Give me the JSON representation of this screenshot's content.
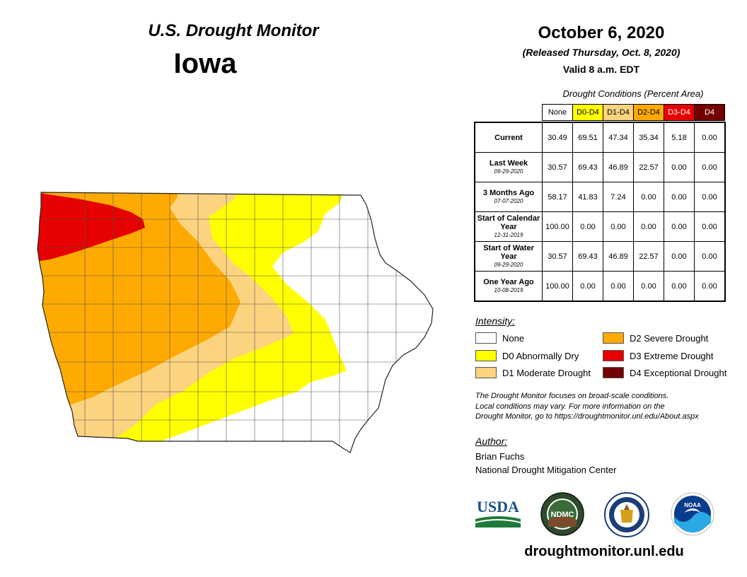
{
  "header": {
    "title": "U.S. Drought Monitor",
    "state": "Iowa",
    "date": "October 6, 2020",
    "released": "(Released Thursday, Oct. 8, 2020)",
    "valid": "Valid 8 a.m. EDT"
  },
  "conditions": {
    "caption": "Drought Conditions (Percent Area)",
    "columns": [
      {
        "label": "None",
        "color": "#ffffff",
        "text_color": "#000000"
      },
      {
        "label": "D0-D4",
        "color": "#ffff00",
        "text_color": "#000000"
      },
      {
        "label": "D1-D4",
        "color": "#fcd37f",
        "text_color": "#000000"
      },
      {
        "label": "D2-D4",
        "color": "#ffaa00",
        "text_color": "#000000"
      },
      {
        "label": "D3-D4",
        "color": "#e60000",
        "text_color": "#ffffff"
      },
      {
        "label": "D4",
        "color": "#730000",
        "text_color": "#ffffff"
      }
    ],
    "rows": [
      {
        "label": "Current",
        "date": "",
        "values": [
          "30.49",
          "69.51",
          "47.34",
          "35.34",
          "5.18",
          "0.00"
        ]
      },
      {
        "label": "Last Week",
        "date": "09-29-2020",
        "values": [
          "30.57",
          "69.43",
          "46.89",
          "22.57",
          "0.00",
          "0.00"
        ]
      },
      {
        "label": "3 Months Ago",
        "date": "07-07-2020",
        "values": [
          "58.17",
          "41.83",
          "7.24",
          "0.00",
          "0.00",
          "0.00"
        ]
      },
      {
        "label": "Start of Calendar Year",
        "date": "12-31-2019",
        "values": [
          "100.00",
          "0.00",
          "0.00",
          "0.00",
          "0.00",
          "0.00"
        ]
      },
      {
        "label": "Start of Water Year",
        "date": "09-29-2020",
        "values": [
          "30.57",
          "69.43",
          "46.89",
          "22.57",
          "0.00",
          "0.00"
        ]
      },
      {
        "label": "One Year Ago",
        "date": "10-08-2019",
        "values": [
          "100.00",
          "0.00",
          "0.00",
          "0.00",
          "0.00",
          "0.00"
        ]
      }
    ]
  },
  "legend": {
    "title": "Intensity:",
    "items": [
      {
        "label": "None",
        "color": "#ffffff"
      },
      {
        "label": "D0 Abnormally Dry",
        "color": "#ffff00"
      },
      {
        "label": "D1 Moderate Drought",
        "color": "#fcd37f"
      },
      {
        "label": "D2 Severe Drought",
        "color": "#ffaa00"
      },
      {
        "label": "D3 Extreme Drought",
        "color": "#e60000"
      },
      {
        "label": "D4 Exceptional Drought",
        "color": "#730000"
      }
    ]
  },
  "note": [
    "The Drought Monitor focuses on broad-scale conditions.",
    "Local conditions may vary. For more information on the",
    "Drought Monitor, go to https://droughtmonitor.unl.edu/About.aspx"
  ],
  "author": {
    "title": "Author:",
    "name": "Brian Fuchs",
    "org": "National Drought Mitigation Center"
  },
  "logos": {
    "usda": "USDA",
    "ndmc": "NDMC",
    "noaa": "NOAA"
  },
  "website": "droughtmonitor.unl.edu"
}
